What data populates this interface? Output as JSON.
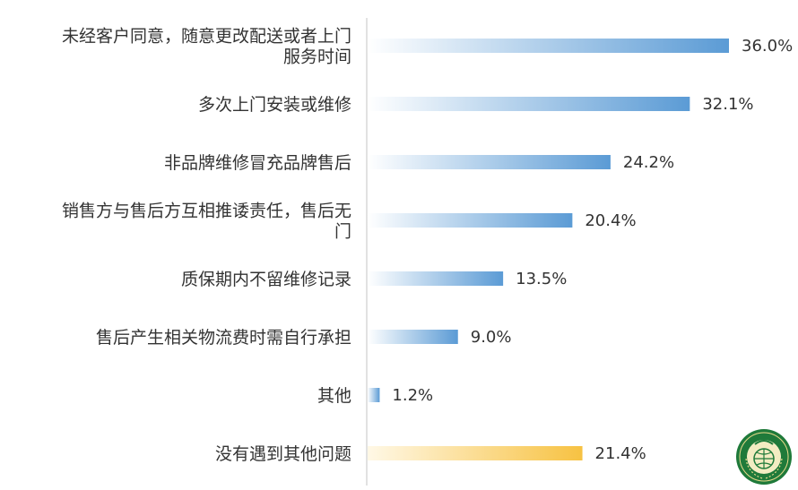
{
  "chart_data": {
    "type": "bar",
    "orientation": "horizontal",
    "title": "",
    "xlabel": "",
    "ylabel": "",
    "xlim": [
      0,
      36.0
    ],
    "grid": false,
    "legend": "none",
    "categories": [
      [
        "未经客户同意，随意更改配送或者上门",
        "服务时间"
      ],
      [
        "多次上门安装或维修"
      ],
      [
        "非品牌维修冒充品牌售后"
      ],
      [
        "销售方与售后方互相推诿责任，售后无",
        "门"
      ],
      [
        "质保期内不留维修记录"
      ],
      [
        "售后产生相关物流费时需自行承担"
      ],
      [
        "其他"
      ],
      [
        "没有遇到其他问题"
      ]
    ],
    "values": [
      36.0,
      32.1,
      24.2,
      20.4,
      13.5,
      9.0,
      1.2,
      21.4
    ],
    "value_labels": [
      "36.0%",
      "32.1%",
      "24.2%",
      "20.4%",
      "13.5%",
      "9.0%",
      "1.2%",
      "21.4%"
    ],
    "colors": {
      "bar": "#5b9bd5",
      "bar_light": "#ffffff",
      "highlight": "#f7c242",
      "highlight_light": "#fff8e6",
      "highlight_index": 7,
      "axis": "#d9d9d9"
    }
  },
  "logo": {
    "icon": "consumer-association-seal-icon"
  }
}
